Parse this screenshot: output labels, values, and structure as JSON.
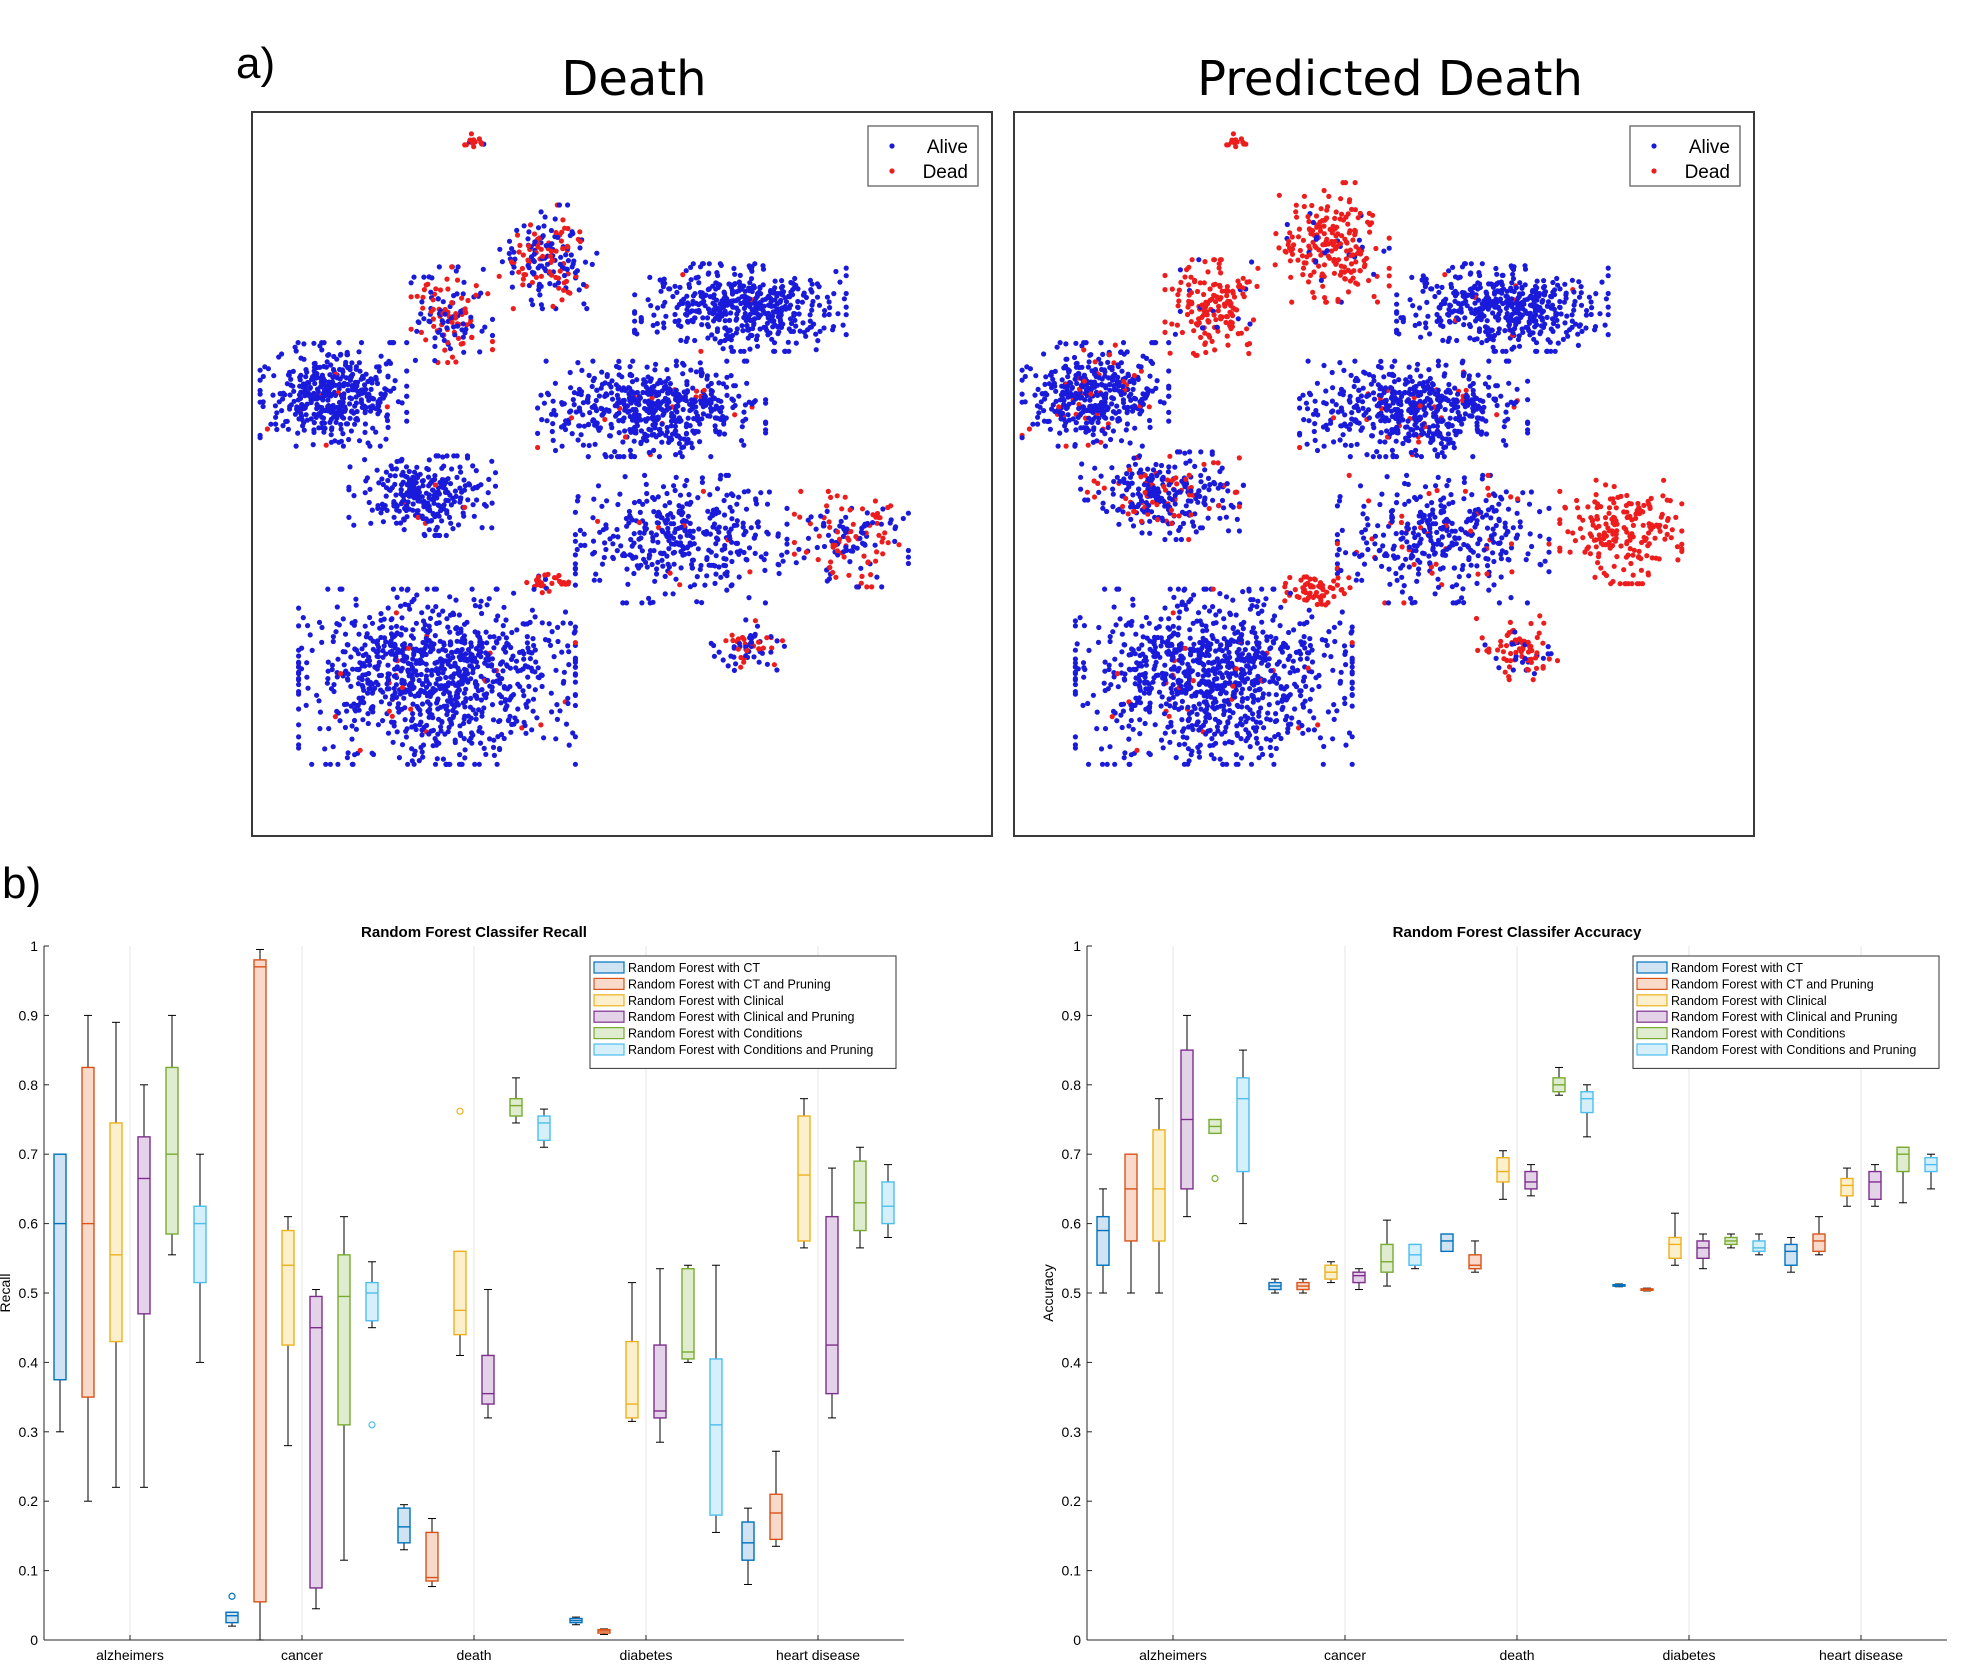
{
  "panel_labels": [
    "a)",
    "b)"
  ],
  "chart_data": [
    {
      "type": "scatter",
      "title": "Death",
      "legend": {
        "position": "top-right",
        "entries": [
          {
            "name": "Alive",
            "color": "#1a1adb"
          },
          {
            "name": "Dead",
            "color": "#ee1d1d"
          }
        ]
      },
      "description_only": false,
      "clusters": [
        {
          "cx": 0.3,
          "cy": 0.96,
          "rx": 0.012,
          "ry": 0.012,
          "n": 14,
          "dead": 0.9
        },
        {
          "cx": 0.4,
          "cy": 0.8,
          "rx": 0.06,
          "ry": 0.065,
          "n": 180,
          "dead": 0.45
        },
        {
          "cx": 0.27,
          "cy": 0.72,
          "rx": 0.05,
          "ry": 0.06,
          "n": 140,
          "dead": 0.45
        },
        {
          "cx": 0.66,
          "cy": 0.73,
          "rx": 0.13,
          "ry": 0.055,
          "n": 480,
          "dead": 0.01
        },
        {
          "cx": 0.11,
          "cy": 0.61,
          "rx": 0.09,
          "ry": 0.065,
          "n": 420,
          "dead": 0.03
        },
        {
          "cx": 0.54,
          "cy": 0.59,
          "rx": 0.14,
          "ry": 0.06,
          "n": 560,
          "dead": 0.03
        },
        {
          "cx": 0.23,
          "cy": 0.47,
          "rx": 0.09,
          "ry": 0.05,
          "n": 280,
          "dead": 0.03
        },
        {
          "cx": 0.58,
          "cy": 0.41,
          "rx": 0.13,
          "ry": 0.08,
          "n": 380,
          "dead": 0.03
        },
        {
          "cx": 0.81,
          "cy": 0.41,
          "rx": 0.07,
          "ry": 0.06,
          "n": 150,
          "dead": 0.45
        },
        {
          "cx": 0.4,
          "cy": 0.35,
          "rx": 0.03,
          "ry": 0.015,
          "n": 30,
          "dead": 0.9
        },
        {
          "cx": 0.25,
          "cy": 0.22,
          "rx": 0.17,
          "ry": 0.11,
          "n": 980,
          "dead": 0.02
        },
        {
          "cx": 0.67,
          "cy": 0.26,
          "rx": 0.045,
          "ry": 0.035,
          "n": 70,
          "dead": 0.4
        }
      ]
    },
    {
      "type": "scatter",
      "title": "Predicted Death",
      "legend": {
        "position": "top-right",
        "entries": [
          {
            "name": "Alive",
            "color": "#1a1adb"
          },
          {
            "name": "Dead",
            "color": "#ee1d1d"
          }
        ]
      },
      "clusters": [
        {
          "cx": 0.3,
          "cy": 0.96,
          "rx": 0.012,
          "ry": 0.012,
          "n": 14,
          "dead": 1.0
        },
        {
          "cx": 0.43,
          "cy": 0.82,
          "rx": 0.07,
          "ry": 0.075,
          "n": 220,
          "dead": 0.9
        },
        {
          "cx": 0.27,
          "cy": 0.73,
          "rx": 0.06,
          "ry": 0.06,
          "n": 170,
          "dead": 0.9
        },
        {
          "cx": 0.66,
          "cy": 0.73,
          "rx": 0.13,
          "ry": 0.055,
          "n": 480,
          "dead": 0.03
        },
        {
          "cx": 0.11,
          "cy": 0.61,
          "rx": 0.09,
          "ry": 0.065,
          "n": 420,
          "dead": 0.1
        },
        {
          "cx": 0.54,
          "cy": 0.59,
          "rx": 0.14,
          "ry": 0.06,
          "n": 560,
          "dead": 0.06
        },
        {
          "cx": 0.2,
          "cy": 0.47,
          "rx": 0.1,
          "ry": 0.055,
          "n": 300,
          "dead": 0.2
        },
        {
          "cx": 0.58,
          "cy": 0.41,
          "rx": 0.13,
          "ry": 0.08,
          "n": 380,
          "dead": 0.12
        },
        {
          "cx": 0.82,
          "cy": 0.42,
          "rx": 0.075,
          "ry": 0.065,
          "n": 200,
          "dead": 1.0
        },
        {
          "cx": 0.41,
          "cy": 0.34,
          "rx": 0.04,
          "ry": 0.025,
          "n": 60,
          "dead": 1.0
        },
        {
          "cx": 0.27,
          "cy": 0.22,
          "rx": 0.17,
          "ry": 0.11,
          "n": 980,
          "dead": 0.03
        },
        {
          "cx": 0.68,
          "cy": 0.26,
          "rx": 0.05,
          "ry": 0.04,
          "n": 90,
          "dead": 0.7
        }
      ]
    },
    {
      "type": "box",
      "title": "Random Forest Classifer Recall",
      "ylabel": "Recall",
      "xlabel": "",
      "ylim": [
        0,
        1
      ],
      "yticks": [
        0,
        0.1,
        0.2,
        0.3,
        0.4,
        0.5,
        0.6,
        0.7,
        0.8,
        0.9,
        1
      ],
      "categories": [
        "alzheimers",
        "cancer",
        "death",
        "diabetes",
        "heart disease"
      ],
      "legend_position": "top-right",
      "grid": "vertical-at-categories",
      "series": [
        {
          "name": "Random Forest with CT",
          "color": "#0072BD",
          "fill": "#cfe3f3",
          "boxes": [
            {
              "min": 0.3,
              "q1": 0.375,
              "median": 0.6,
              "q3": 0.7,
              "max": 0.7,
              "outliers": []
            },
            {
              "min": 0.02,
              "q1": 0.025,
              "median": 0.035,
              "q3": 0.04,
              "max": 0.04,
              "outliers": [
                0.063
              ]
            },
            {
              "min": 0.13,
              "q1": 0.14,
              "median": 0.163,
              "q3": 0.19,
              "max": 0.195,
              "outliers": []
            },
            {
              "min": 0.022,
              "q1": 0.025,
              "median": 0.028,
              "q3": 0.031,
              "max": 0.033,
              "outliers": []
            },
            {
              "min": 0.08,
              "q1": 0.115,
              "median": 0.14,
              "q3": 0.17,
              "max": 0.19,
              "outliers": []
            }
          ]
        },
        {
          "name": "Random Forest with CT and Pruning",
          "color": "#D95319",
          "fill": "#f8d9ca",
          "boxes": [
            {
              "min": 0.2,
              "q1": 0.35,
              "median": 0.6,
              "q3": 0.825,
              "max": 0.9,
              "outliers": []
            },
            {
              "min": 0.0,
              "q1": 0.055,
              "median": 0.97,
              "q3": 0.98,
              "max": 0.995,
              "outliers": []
            },
            {
              "min": 0.077,
              "q1": 0.085,
              "median": 0.09,
              "q3": 0.155,
              "max": 0.175,
              "outliers": []
            },
            {
              "min": 0.008,
              "q1": 0.01,
              "median": 0.013,
              "q3": 0.015,
              "max": 0.016,
              "outliers": []
            },
            {
              "min": 0.135,
              "q1": 0.145,
              "median": 0.183,
              "q3": 0.21,
              "max": 0.272,
              "outliers": []
            }
          ]
        },
        {
          "name": "Random Forest with Clinical",
          "color": "#EDB120",
          "fill": "#fbefcc",
          "boxes": [
            {
              "min": 0.22,
              "q1": 0.43,
              "median": 0.555,
              "q3": 0.745,
              "max": 0.89,
              "outliers": []
            },
            {
              "min": 0.28,
              "q1": 0.425,
              "median": 0.54,
              "q3": 0.59,
              "max": 0.61,
              "outliers": []
            },
            {
              "min": 0.41,
              "q1": 0.44,
              "median": 0.475,
              "q3": 0.56,
              "max": 0.56,
              "outliers": [
                0.762
              ]
            },
            {
              "min": 0.315,
              "q1": 0.32,
              "median": 0.34,
              "q3": 0.43,
              "max": 0.515,
              "outliers": []
            },
            {
              "min": 0.565,
              "q1": 0.575,
              "median": 0.67,
              "q3": 0.755,
              "max": 0.78,
              "outliers": []
            }
          ]
        },
        {
          "name": "Random Forest with Clinical and Pruning",
          "color": "#7E2F8E",
          "fill": "#e4d3e8",
          "boxes": [
            {
              "min": 0.22,
              "q1": 0.47,
              "median": 0.665,
              "q3": 0.725,
              "max": 0.8,
              "outliers": []
            },
            {
              "min": 0.045,
              "q1": 0.075,
              "median": 0.45,
              "q3": 0.495,
              "max": 0.505,
              "outliers": []
            },
            {
              "min": 0.32,
              "q1": 0.34,
              "median": 0.355,
              "q3": 0.41,
              "max": 0.505,
              "outliers": []
            },
            {
              "min": 0.285,
              "q1": 0.32,
              "median": 0.33,
              "q3": 0.425,
              "max": 0.535,
              "outliers": []
            },
            {
              "min": 0.32,
              "q1": 0.355,
              "median": 0.425,
              "q3": 0.61,
              "max": 0.68,
              "outliers": []
            }
          ]
        },
        {
          "name": "Random Forest with Conditions",
          "color": "#77AC30",
          "fill": "#dfecd0",
          "boxes": [
            {
              "min": 0.555,
              "q1": 0.585,
              "median": 0.7,
              "q3": 0.825,
              "max": 0.9,
              "outliers": []
            },
            {
              "min": 0.115,
              "q1": 0.31,
              "median": 0.495,
              "q3": 0.555,
              "max": 0.61,
              "outliers": []
            },
            {
              "min": 0.745,
              "q1": 0.755,
              "median": 0.77,
              "q3": 0.78,
              "max": 0.81,
              "outliers": []
            },
            {
              "min": 0.4,
              "q1": 0.405,
              "median": 0.415,
              "q3": 0.535,
              "max": 0.54,
              "outliers": []
            },
            {
              "min": 0.565,
              "q1": 0.59,
              "median": 0.63,
              "q3": 0.69,
              "max": 0.71,
              "outliers": []
            }
          ]
        },
        {
          "name": "Random Forest with Conditions and Pruning",
          "color": "#4DBEEE",
          "fill": "#d6f0fb",
          "boxes": [
            {
              "min": 0.4,
              "q1": 0.515,
              "median": 0.6,
              "q3": 0.625,
              "max": 0.7,
              "outliers": []
            },
            {
              "min": 0.45,
              "q1": 0.46,
              "median": 0.5,
              "q3": 0.515,
              "max": 0.545,
              "outliers": [
                0.31
              ]
            },
            {
              "min": 0.71,
              "q1": 0.72,
              "median": 0.745,
              "q3": 0.755,
              "max": 0.765,
              "outliers": []
            },
            {
              "min": 0.155,
              "q1": 0.18,
              "median": 0.31,
              "q3": 0.405,
              "max": 0.54,
              "outliers": []
            },
            {
              "min": 0.58,
              "q1": 0.6,
              "median": 0.625,
              "q3": 0.66,
              "max": 0.685,
              "outliers": []
            }
          ]
        }
      ]
    },
    {
      "type": "box",
      "title": "Random Forest Classifer Accuracy",
      "ylabel": "Accuracy",
      "xlabel": "",
      "ylim": [
        0,
        1
      ],
      "yticks": [
        0,
        0.1,
        0.2,
        0.3,
        0.4,
        0.5,
        0.6,
        0.7,
        0.8,
        0.9,
        1
      ],
      "categories": [
        "alzheimers",
        "cancer",
        "death",
        "diabetes",
        "heart disease"
      ],
      "legend_position": "top-right",
      "grid": "vertical-at-categories",
      "series": [
        {
          "name": "Random Forest with CT",
          "color": "#0072BD",
          "fill": "#cfe3f3",
          "boxes": [
            {
              "min": 0.5,
              "q1": 0.54,
              "median": 0.59,
              "q3": 0.61,
              "max": 0.65,
              "outliers": []
            },
            {
              "min": 0.5,
              "q1": 0.505,
              "median": 0.51,
              "q3": 0.515,
              "max": 0.52,
              "outliers": []
            },
            {
              "min": 0.56,
              "q1": 0.56,
              "median": 0.575,
              "q3": 0.585,
              "max": 0.585,
              "outliers": []
            },
            {
              "min": 0.509,
              "q1": 0.51,
              "median": 0.511,
              "q3": 0.512,
              "max": 0.513,
              "outliers": []
            },
            {
              "min": 0.53,
              "q1": 0.54,
              "median": 0.56,
              "q3": 0.57,
              "max": 0.58,
              "outliers": []
            }
          ]
        },
        {
          "name": "Random Forest with CT and Pruning",
          "color": "#D95319",
          "fill": "#f8d9ca",
          "boxes": [
            {
              "min": 0.5,
              "q1": 0.575,
              "median": 0.65,
              "q3": 0.7,
              "max": 0.7,
              "outliers": []
            },
            {
              "min": 0.5,
              "q1": 0.505,
              "median": 0.51,
              "q3": 0.515,
              "max": 0.52,
              "outliers": []
            },
            {
              "min": 0.53,
              "q1": 0.535,
              "median": 0.54,
              "q3": 0.555,
              "max": 0.575,
              "outliers": []
            },
            {
              "min": 0.503,
              "q1": 0.504,
              "median": 0.505,
              "q3": 0.506,
              "max": 0.507,
              "outliers": []
            },
            {
              "min": 0.555,
              "q1": 0.56,
              "median": 0.575,
              "q3": 0.585,
              "max": 0.61,
              "outliers": []
            }
          ]
        },
        {
          "name": "Random Forest with Clinical",
          "color": "#EDB120",
          "fill": "#fbefcc",
          "boxes": [
            {
              "min": 0.5,
              "q1": 0.575,
              "median": 0.65,
              "q3": 0.735,
              "max": 0.78,
              "outliers": []
            },
            {
              "min": 0.515,
              "q1": 0.52,
              "median": 0.53,
              "q3": 0.54,
              "max": 0.545,
              "outliers": []
            },
            {
              "min": 0.635,
              "q1": 0.66,
              "median": 0.675,
              "q3": 0.695,
              "max": 0.705,
              "outliers": []
            },
            {
              "min": 0.54,
              "q1": 0.55,
              "median": 0.57,
              "q3": 0.58,
              "max": 0.615,
              "outliers": []
            },
            {
              "min": 0.625,
              "q1": 0.64,
              "median": 0.655,
              "q3": 0.665,
              "max": 0.68,
              "outliers": []
            }
          ]
        },
        {
          "name": "Random Forest with Clinical and Pruning",
          "color": "#7E2F8E",
          "fill": "#e4d3e8",
          "boxes": [
            {
              "min": 0.61,
              "q1": 0.65,
              "median": 0.75,
              "q3": 0.85,
              "max": 0.9,
              "outliers": []
            },
            {
              "min": 0.505,
              "q1": 0.515,
              "median": 0.525,
              "q3": 0.53,
              "max": 0.535,
              "outliers": []
            },
            {
              "min": 0.64,
              "q1": 0.65,
              "median": 0.66,
              "q3": 0.675,
              "max": 0.685,
              "outliers": []
            },
            {
              "min": 0.535,
              "q1": 0.55,
              "median": 0.565,
              "q3": 0.575,
              "max": 0.585,
              "outliers": []
            },
            {
              "min": 0.625,
              "q1": 0.635,
              "median": 0.66,
              "q3": 0.675,
              "max": 0.685,
              "outliers": []
            }
          ]
        },
        {
          "name": "Random Forest with Conditions",
          "color": "#77AC30",
          "fill": "#dfecd0",
          "boxes": [
            {
              "min": 0.73,
              "q1": 0.73,
              "median": 0.74,
              "q3": 0.75,
              "max": 0.75,
              "outliers": [
                0.665
              ]
            },
            {
              "min": 0.51,
              "q1": 0.53,
              "median": 0.545,
              "q3": 0.57,
              "max": 0.605,
              "outliers": []
            },
            {
              "min": 0.785,
              "q1": 0.79,
              "median": 0.8,
              "q3": 0.81,
              "max": 0.825,
              "outliers": []
            },
            {
              "min": 0.565,
              "q1": 0.57,
              "median": 0.575,
              "q3": 0.58,
              "max": 0.585,
              "outliers": []
            },
            {
              "min": 0.63,
              "q1": 0.675,
              "median": 0.7,
              "q3": 0.71,
              "max": 0.71,
              "outliers": []
            }
          ]
        },
        {
          "name": "Random Forest with Conditions and Pruning",
          "color": "#4DBEEE",
          "fill": "#d6f0fb",
          "boxes": [
            {
              "min": 0.6,
              "q1": 0.675,
              "median": 0.78,
              "q3": 0.81,
              "max": 0.85,
              "outliers": []
            },
            {
              "min": 0.535,
              "q1": 0.54,
              "median": 0.555,
              "q3": 0.57,
              "max": 0.57,
              "outliers": []
            },
            {
              "min": 0.725,
              "q1": 0.76,
              "median": 0.78,
              "q3": 0.79,
              "max": 0.8,
              "outliers": []
            },
            {
              "min": 0.555,
              "q1": 0.56,
              "median": 0.565,
              "q3": 0.575,
              "max": 0.585,
              "outliers": []
            },
            {
              "min": 0.65,
              "q1": 0.675,
              "median": 0.685,
              "q3": 0.695,
              "max": 0.7,
              "outliers": []
            }
          ]
        }
      ]
    }
  ]
}
